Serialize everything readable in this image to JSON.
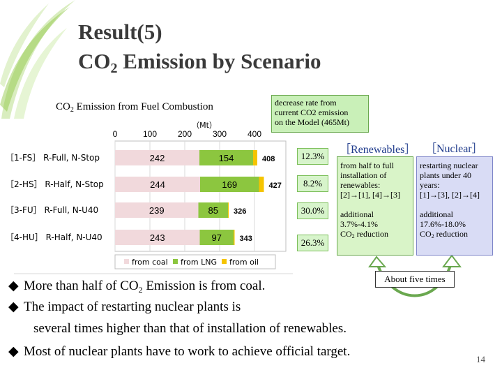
{
  "title": {
    "line1": "Result(5)",
    "line2_pre": "CO",
    "line2_sub": "2",
    "line2_post": " Emission by Scenario"
  },
  "chart_data": {
    "type": "bar",
    "orientation": "horizontal",
    "stacked": true,
    "title": {
      "pre": "CO",
      "sub": "2",
      "post": " Emission from Fuel Combustion"
    },
    "unit": "（Mt）",
    "xlim": [
      0,
      400
    ],
    "xticks": [
      0,
      100,
      200,
      300,
      400
    ],
    "grid": true,
    "legend_position": "bottom",
    "categories": [
      "［1-FS］ R-Full, N-Stop",
      "［2-HS］ R-Half, N-Stop",
      "［3-FU］ R-Full, N-U40",
      "［4-HU］ R-Half, N-U40"
    ],
    "series": [
      {
        "name": "from coal",
        "color": "#f1d9dc",
        "values": [
          242,
          244,
          239,
          243
        ]
      },
      {
        "name": "from LNG",
        "color": "#8cc63f",
        "values": [
          154,
          169,
          85,
          97
        ]
      },
      {
        "name": "from oil",
        "color": "#f5c400",
        "values": [
          12,
          14,
          2,
          3
        ]
      }
    ],
    "totals": [
      408,
      427,
      326,
      343
    ],
    "segment_labels": {
      "coal": [
        "242",
        "244",
        "239",
        "243"
      ],
      "lng": [
        "154",
        "169",
        "85",
        "97"
      ]
    },
    "total_labels": [
      "408",
      "427",
      "326",
      "343"
    ]
  },
  "decrease_note": [
    "decrease rate  from",
    "current CO2 emission",
    "on the Model (465Mt)"
  ],
  "decrease_rates": [
    "12.3%",
    "8.2%",
    "30.0%",
    "26.3%"
  ],
  "renewables": {
    "header": "［Renewables］",
    "lines": [
      "from half to full",
      "installation  of",
      "renewables:",
      "[2]→[1], [4]→[3]"
    ],
    "additional": "additional",
    "range": "3.7%-4.1%",
    "reduction_pre": "CO",
    "reduction_sub": "2",
    "reduction_post": " reduction"
  },
  "nuclear": {
    "header": "［Nuclear］",
    "lines": [
      "restarting nuclear",
      "plants under 40",
      "years:",
      "[1]→[3], [2]→[4]"
    ],
    "additional": "additional",
    "range": "17.6%-18.0%",
    "reduction_pre": "CO",
    "reduction_sub": "2",
    "reduction_post": " reduction"
  },
  "comparison": "About five times",
  "bullets": {
    "marker": "◆",
    "b1_pre": "More than half of CO",
    "b1_sub": "2",
    "b1_post": " Emission is from coal.",
    "b2": "The impact of restarting nuclear plants is",
    "b2_cont": "several times higher than that of installation of renewables.",
    "b3": "Most of nuclear plants have to work to achieve official target."
  },
  "page_number": "14",
  "colors": {
    "accent_green": "#8cc63f",
    "title_gray": "#3a3a3a",
    "header_blue": "#1f3b8c"
  }
}
